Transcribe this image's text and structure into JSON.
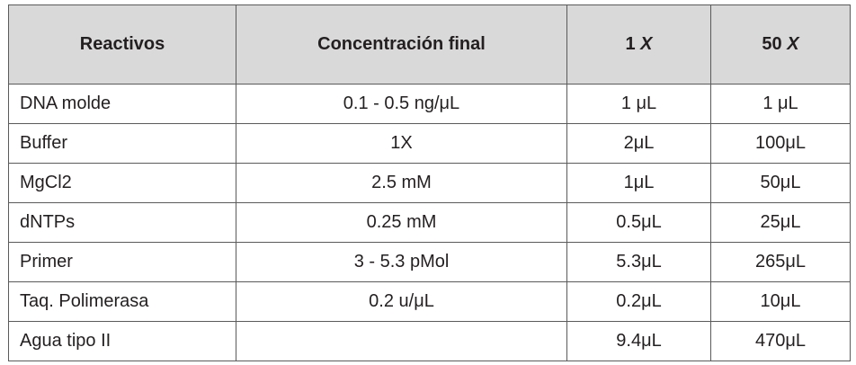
{
  "table": {
    "header": [
      "Reactivos",
      "Concentración final",
      [
        "1",
        "X"
      ],
      [
        "50",
        "X"
      ]
    ],
    "rows": [
      [
        "DNA molde",
        "0.1 - 0.5 ng/μL",
        "1 μL",
        "1 μL"
      ],
      [
        "Buffer",
        "1X",
        "2μL",
        "100μL"
      ],
      [
        "MgCl2",
        "2.5 mM",
        "1μL",
        "50μL"
      ],
      [
        "dNTPs",
        "0.25 mM",
        "0.5μL",
        "25μL"
      ],
      [
        "Primer",
        "3 - 5.3 pMol",
        "5.3μL",
        "265μL"
      ],
      [
        "Taq. Polimerasa",
        "0.2 u/μL",
        "0.2μL",
        "10μL"
      ],
      [
        "Agua tipo II",
        null,
        "9.4μL",
        "470μL"
      ]
    ]
  }
}
